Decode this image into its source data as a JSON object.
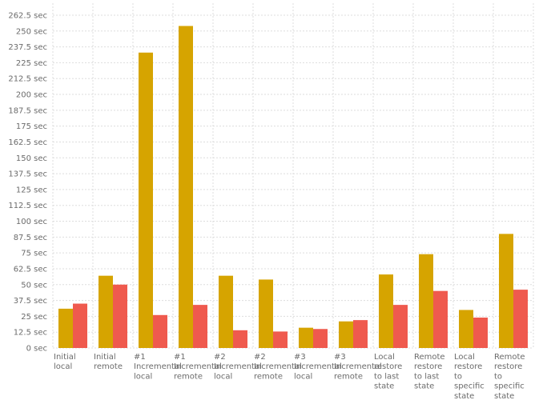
{
  "chart_data": {
    "type": "bar",
    "title": "",
    "xlabel": "",
    "ylabel": "",
    "categories": [
      [
        "Initial",
        "local"
      ],
      [
        "Initial",
        "remote"
      ],
      [
        "#1",
        "Incremental",
        "local"
      ],
      [
        "#1",
        "Incremental",
        "remote"
      ],
      [
        "#2",
        "Incremental",
        "local"
      ],
      [
        "#2",
        "Incremental",
        "remote"
      ],
      [
        "#3",
        "Incremental",
        "local"
      ],
      [
        "#3",
        "Incremental",
        "remote"
      ],
      [
        "Local",
        "restore",
        "to last",
        "state"
      ],
      [
        "Remote",
        "restore",
        "to last",
        "state"
      ],
      [
        "Local",
        "restore",
        "to",
        "specific",
        "state"
      ],
      [
        "Remote",
        "restore",
        "to",
        "specific",
        "state"
      ]
    ],
    "series": [
      {
        "values": [
          31,
          57,
          233,
          254,
          57,
          54,
          16,
          21,
          58,
          74,
          30,
          90
        ]
      },
      {
        "values": [
          35,
          50,
          26,
          34,
          14,
          13,
          15,
          22,
          34,
          45,
          24,
          46
        ]
      }
    ],
    "ylim": [
      0,
      262.5
    ],
    "yticks": [
      0,
      12.5,
      25,
      37.5,
      50,
      62.5,
      75,
      87.5,
      100,
      112.5,
      125,
      137.5,
      150,
      162.5,
      175,
      187.5,
      200,
      212.5,
      225,
      237.5,
      250,
      262.5
    ],
    "tick_suffix": " sec",
    "grid": true,
    "legend": "none",
    "colors": [
      "#d6a400",
      "#ef5a4e"
    ]
  }
}
